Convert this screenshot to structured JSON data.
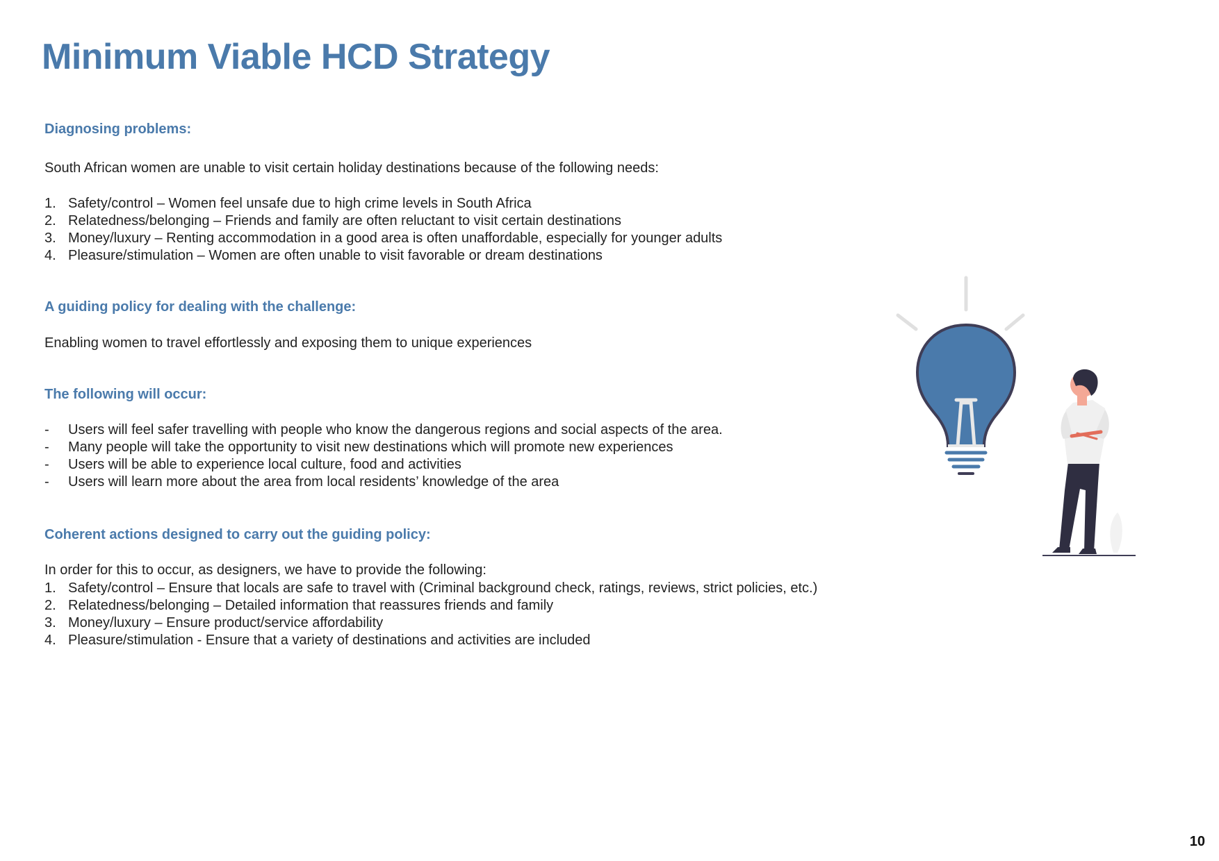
{
  "title": "Minimum Viable HCD Strategy",
  "sections": {
    "diagnosing": {
      "heading": "Diagnosing problems:",
      "intro": "South African women are unable to visit certain holiday destinations because of the following needs:",
      "items": [
        {
          "marker": "1.",
          "text": "Safety/control – Women feel unsafe due to high crime levels in South Africa"
        },
        {
          "marker": "2.",
          "text": "Relatedness/belonging – Friends and family are often reluctant to visit certain destinations"
        },
        {
          "marker": "3.",
          "text": "Money/luxury – Renting accommodation in a good area is often unaffordable, especially for younger adults"
        },
        {
          "marker": "4.",
          "text": "Pleasure/stimulation – Women are often unable to visit favorable or dream destinations"
        }
      ]
    },
    "policy": {
      "heading": "A guiding policy for dealing with the challenge:",
      "text": "Enabling women to travel effortlessly and exposing them to unique experiences"
    },
    "outcomes": {
      "heading": "The following will occur:",
      "items": [
        {
          "marker": "-",
          "text": "Users will feel safer travelling with people who know the dangerous regions and social aspects of the area."
        },
        {
          "marker": "-",
          "text": "Many people will take the opportunity to visit new destinations which will promote new experiences"
        },
        {
          "marker": "-",
          "text": "Users will be able to experience local culture, food and activities"
        },
        {
          "marker": "-",
          "text": "Users will learn more about the area from local residents’ knowledge of the area"
        }
      ]
    },
    "actions": {
      "heading": "Coherent actions designed to carry out the guiding policy:",
      "intro": "In order for this to occur, as designers, we have to provide the following:",
      "items": [
        {
          "marker": "1.",
          "text": "Safety/control – Ensure that locals are safe to travel with (Criminal background check, ratings, reviews, strict policies, etc.)"
        },
        {
          "marker": "2.",
          "text": "Relatedness/belonging – Detailed information that reassures friends and family"
        },
        {
          "marker": "3.",
          "text": "Money/luxury – Ensure product/service affordability"
        },
        {
          "marker": "4.",
          "text": "Pleasure/stimulation - Ensure that a variety of destinations and activities are included"
        }
      ]
    }
  },
  "illustration": {
    "icons": [
      "lightbulb-icon",
      "person-icon"
    ],
    "colors": {
      "bulb": "#4a7aab",
      "outline": "#3f3d56",
      "rays": "#e0e0e0",
      "shirt": "#f0f0f0",
      "pants": "#2f2e41",
      "skin": "#f4a896"
    }
  },
  "page_number": "10",
  "colors": {
    "accent": "#4a7aab",
    "text": "#222222"
  }
}
